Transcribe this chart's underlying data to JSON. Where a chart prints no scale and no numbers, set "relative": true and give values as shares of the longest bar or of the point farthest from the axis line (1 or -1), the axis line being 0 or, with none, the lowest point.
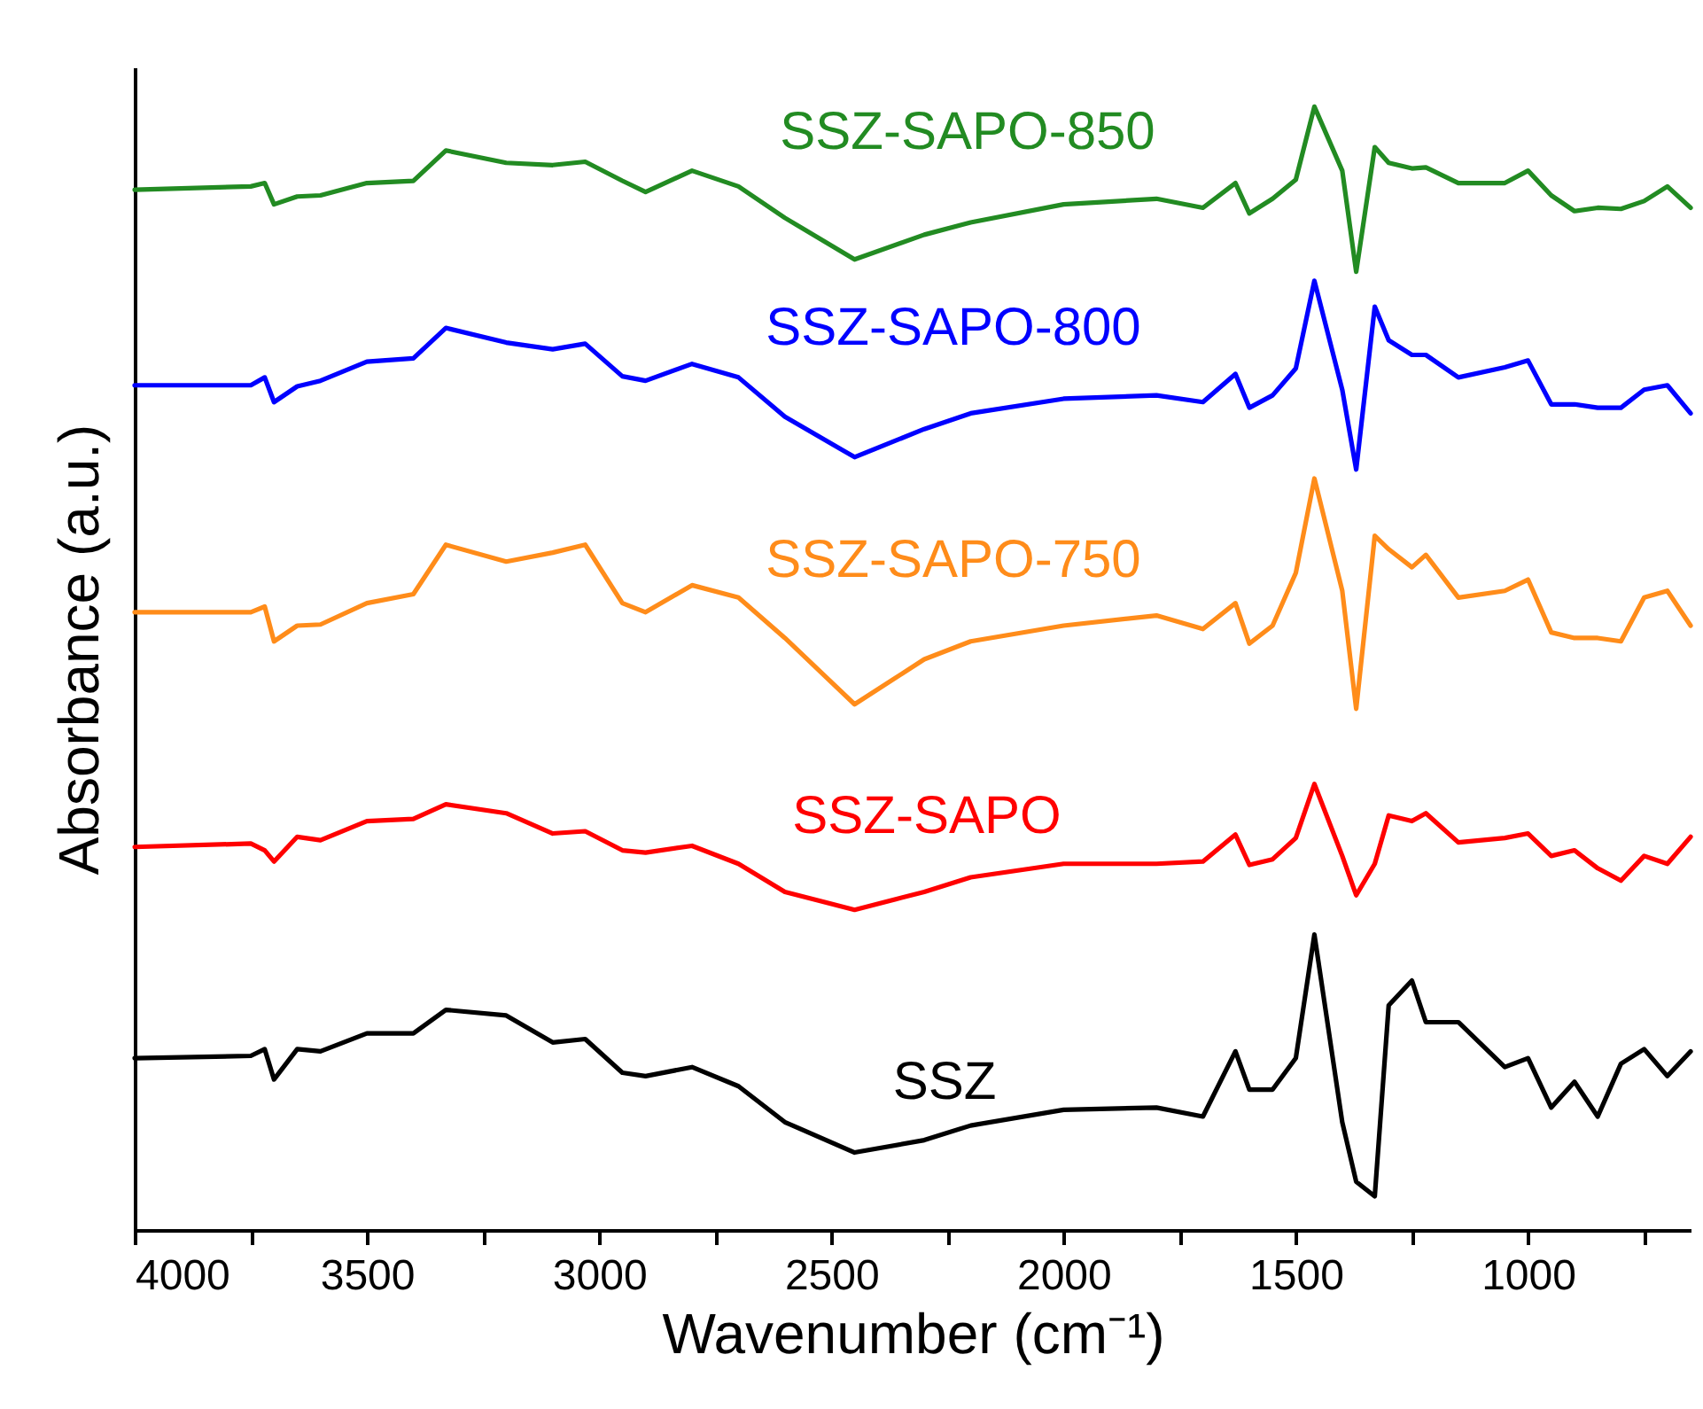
{
  "chart_data": {
    "type": "line",
    "relative": true,
    "xlabel": "Wavenumber (cm⁻¹)",
    "ylabel": "Absorbance (a.u.)",
    "xlim": [
      4000,
      650
    ],
    "xticks": [
      4000,
      {
        "value": 3750,
        "label": null
      },
      3500,
      {
        "value": 3250,
        "label": null
      },
      3000,
      {
        "value": 2750,
        "label": null
      },
      2500,
      {
        "value": 2250,
        "label": null
      },
      2000,
      {
        "value": 1750,
        "label": null
      },
      1500,
      {
        "value": 1250,
        "label": null
      },
      1000,
      {
        "value": 750,
        "label": null
      }
    ],
    "grid": false,
    "legend": false,
    "line_style": "solid",
    "marker": "none",
    "x": [
      4000,
      3750,
      3720,
      3700,
      3650,
      3600,
      3500,
      3400,
      3330,
      3200,
      3100,
      3030,
      2950,
      2900,
      2800,
      2700,
      2600,
      2450,
      2300,
      2200,
      2000,
      1800,
      1700,
      1630,
      1600,
      1550,
      1500,
      1460,
      1400,
      1370,
      1330,
      1300,
      1250,
      1220,
      1150,
      1050,
      1000,
      950,
      900,
      850,
      800,
      750,
      700,
      650
    ],
    "series": [
      {
        "name": "SSZ-SAPO-850",
        "color": "#228b22",
        "values": [
          0.926,
          0.929,
          0.932,
          0.913,
          0.92,
          0.921,
          0.932,
          0.934,
          0.961,
          0.95,
          0.948,
          0.951,
          0.934,
          0.924,
          0.943,
          0.929,
          0.901,
          0.864,
          0.886,
          0.897,
          0.913,
          0.918,
          0.91,
          0.932,
          0.905,
          0.918,
          0.935,
          1.0,
          0.943,
          0.853,
          0.964,
          0.95,
          0.945,
          0.946,
          0.932,
          0.932,
          0.943,
          0.921,
          0.907,
          0.91,
          0.909,
          0.916,
          0.929,
          0.91
        ]
      },
      {
        "name": "SSZ-SAPO-800",
        "color": "#0000ff",
        "values": [
          0.752,
          0.752,
          0.759,
          0.737,
          0.751,
          0.756,
          0.773,
          0.776,
          0.803,
          0.79,
          0.784,
          0.789,
          0.76,
          0.756,
          0.771,
          0.759,
          0.724,
          0.688,
          0.713,
          0.727,
          0.74,
          0.743,
          0.737,
          0.762,
          0.732,
          0.743,
          0.767,
          0.845,
          0.748,
          0.677,
          0.822,
          0.792,
          0.779,
          0.779,
          0.759,
          0.768,
          0.774,
          0.735,
          0.735,
          0.732,
          0.732,
          0.748,
          0.752,
          0.727
        ]
      },
      {
        "name": "SSZ-SAPO-750",
        "color": "#ff8c1a",
        "values": [
          0.55,
          0.55,
          0.555,
          0.524,
          0.538,
          0.539,
          0.558,
          0.566,
          0.61,
          0.595,
          0.603,
          0.61,
          0.558,
          0.55,
          0.574,
          0.563,
          0.527,
          0.468,
          0.508,
          0.524,
          0.538,
          0.547,
          0.535,
          0.558,
          0.522,
          0.538,
          0.585,
          0.669,
          0.569,
          0.464,
          0.618,
          0.606,
          0.59,
          0.601,
          0.563,
          0.569,
          0.579,
          0.532,
          0.527,
          0.527,
          0.524,
          0.563,
          0.569,
          0.538
        ]
      },
      {
        "name": "SSZ-SAPO",
        "color": "#ff0000",
        "values": [
          0.341,
          0.344,
          0.338,
          0.328,
          0.35,
          0.347,
          0.364,
          0.366,
          0.379,
          0.371,
          0.353,
          0.355,
          0.338,
          0.336,
          0.342,
          0.326,
          0.301,
          0.285,
          0.301,
          0.314,
          0.326,
          0.326,
          0.328,
          0.352,
          0.325,
          0.33,
          0.349,
          0.397,
          0.333,
          0.298,
          0.326,
          0.369,
          0.364,
          0.371,
          0.345,
          0.349,
          0.353,
          0.333,
          0.338,
          0.322,
          0.311,
          0.333,
          0.326,
          0.35
        ]
      },
      {
        "name": "SSZ",
        "color": "#000000",
        "values": [
          0.153,
          0.155,
          0.161,
          0.134,
          0.161,
          0.159,
          0.175,
          0.175,
          0.196,
          0.191,
          0.167,
          0.17,
          0.14,
          0.137,
          0.145,
          0.128,
          0.096,
          0.069,
          0.08,
          0.093,
          0.107,
          0.109,
          0.101,
          0.159,
          0.125,
          0.125,
          0.153,
          0.263,
          0.096,
          0.043,
          0.03,
          0.2,
          0.222,
          0.185,
          0.185,
          0.145,
          0.153,
          0.109,
          0.132,
          0.101,
          0.148,
          0.161,
          0.137,
          0.159
        ]
      }
    ]
  }
}
